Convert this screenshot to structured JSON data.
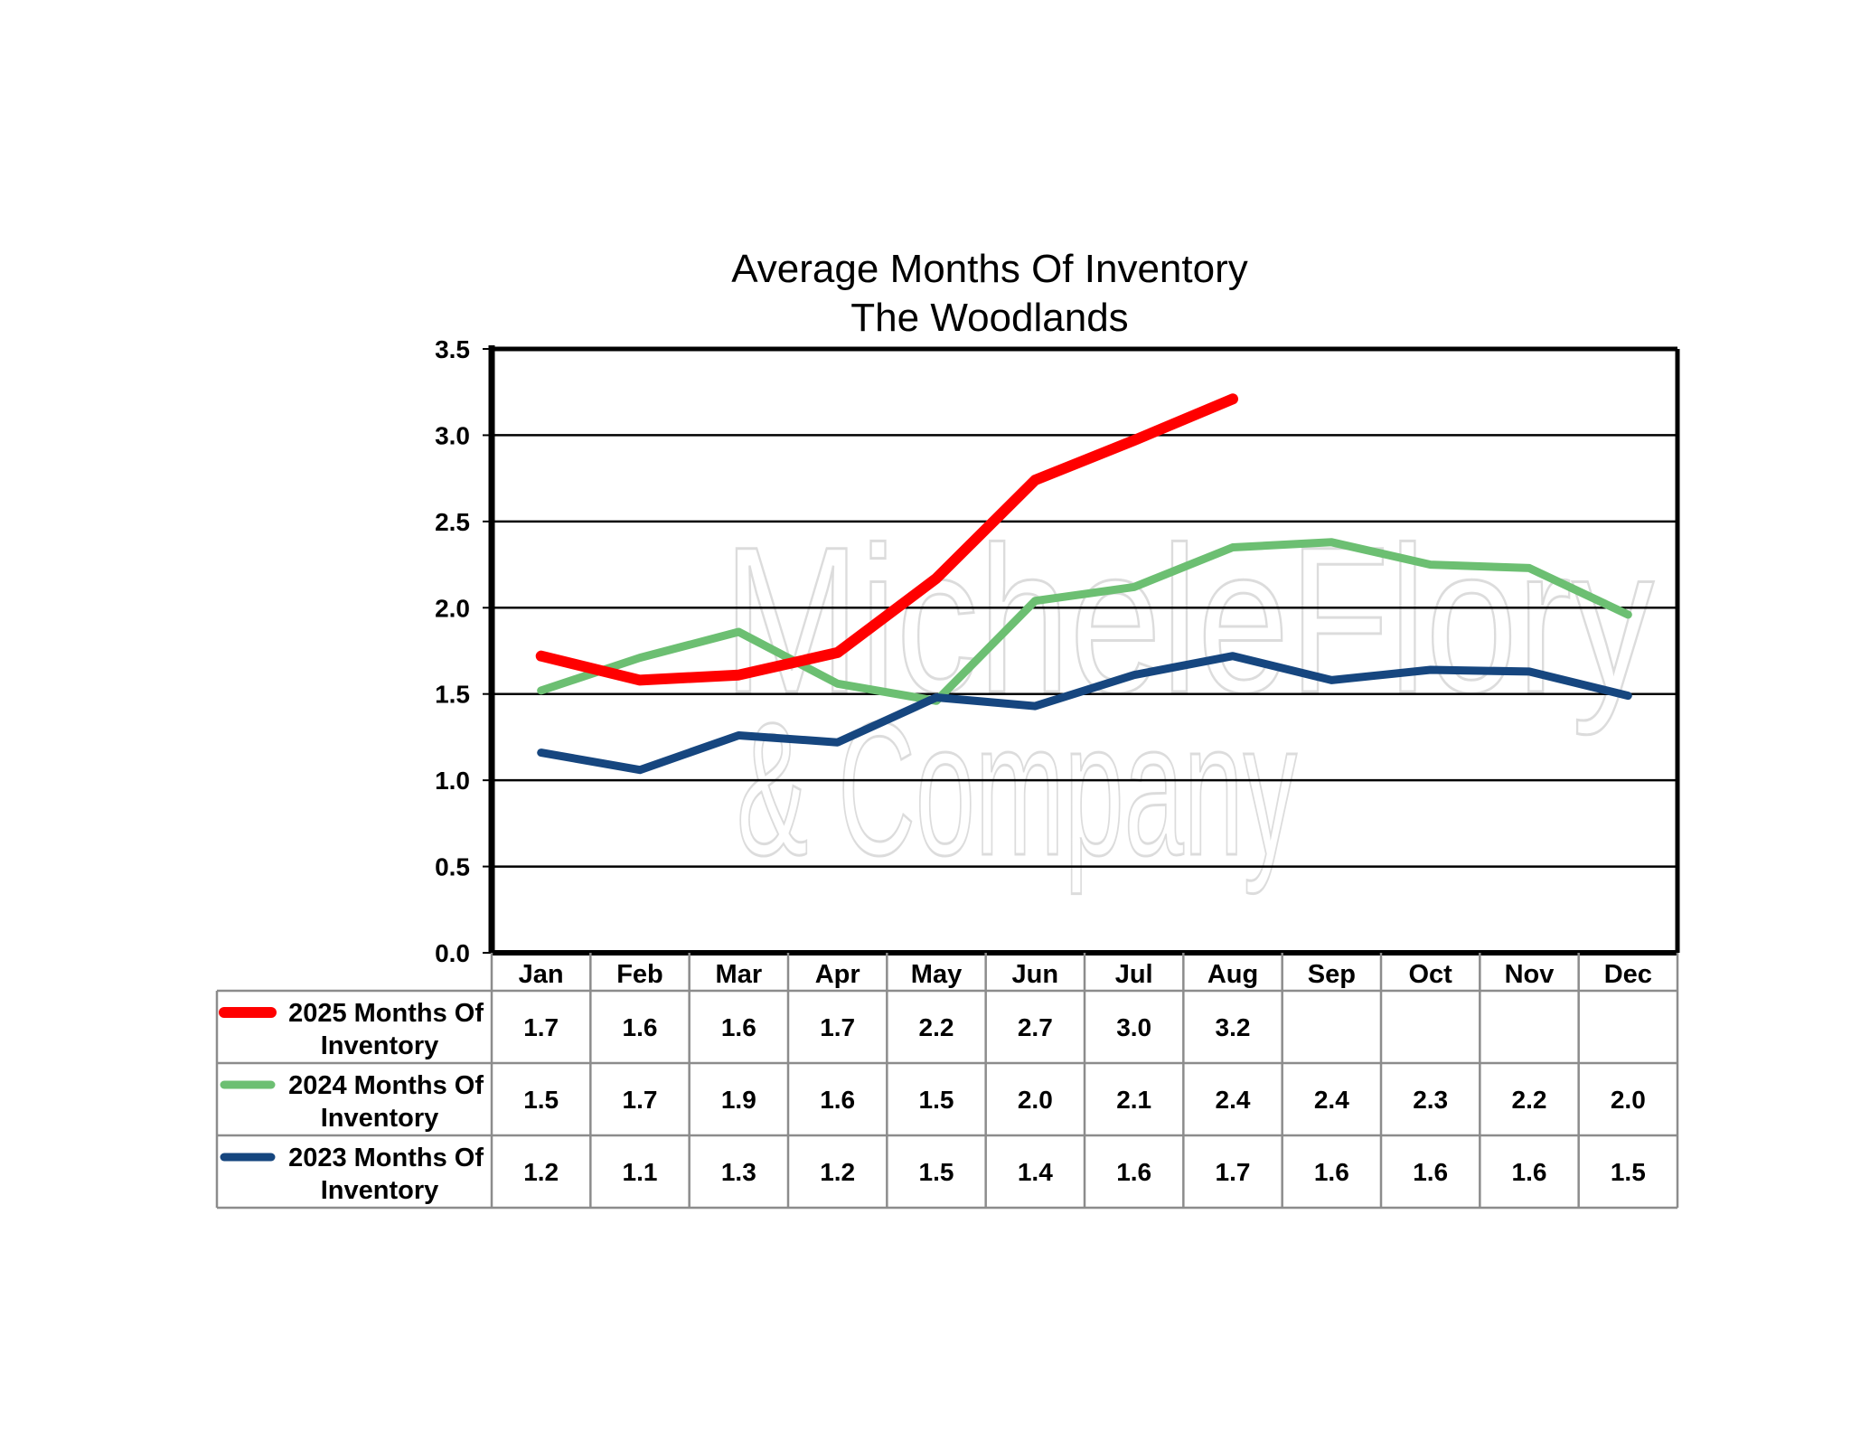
{
  "chart_data": {
    "type": "line",
    "title": "Average Months Of Inventory",
    "subtitle": "The Woodlands",
    "categories": [
      "Jan",
      "Feb",
      "Mar",
      "Apr",
      "May",
      "Jun",
      "Jul",
      "Aug",
      "Sep",
      "Oct",
      "Nov",
      "Dec"
    ],
    "ylim": [
      0,
      3.5
    ],
    "yticks": [
      "0.0",
      "0.5",
      "1.0",
      "1.5",
      "2.0",
      "2.5",
      "3.0",
      "3.5"
    ],
    "grid": true,
    "legend": "data-table-left",
    "series": [
      {
        "name_line1": "2025 Months Of",
        "name_line2": "Inventory",
        "color": "#ff0000",
        "values": [
          1.72,
          1.58,
          1.61,
          1.74,
          2.17,
          2.74,
          2.97,
          3.21,
          null,
          null,
          null,
          null
        ],
        "labels": [
          "1.7",
          "1.6",
          "1.6",
          "1.7",
          "2.2",
          "2.7",
          "3.0",
          "3.2",
          "",
          "",
          "",
          ""
        ]
      },
      {
        "name_line1": "2024 Months Of",
        "name_line2": "Inventory",
        "color": "#6cbf72",
        "values": [
          1.52,
          1.71,
          1.86,
          1.56,
          1.46,
          2.04,
          2.12,
          2.35,
          2.38,
          2.25,
          2.23,
          1.96
        ],
        "labels": [
          "1.5",
          "1.7",
          "1.9",
          "1.6",
          "1.5",
          "2.0",
          "2.1",
          "2.4",
          "2.4",
          "2.3",
          "2.2",
          "2.0"
        ]
      },
      {
        "name_line1": "2023 Months Of",
        "name_line2": "Inventory",
        "color": "#16467f",
        "values": [
          1.16,
          1.06,
          1.26,
          1.22,
          1.48,
          1.43,
          1.61,
          1.72,
          1.58,
          1.64,
          1.63,
          1.49
        ],
        "labels": [
          "1.2",
          "1.1",
          "1.3",
          "1.2",
          "1.5",
          "1.4",
          "1.6",
          "1.7",
          "1.6",
          "1.6",
          "1.6",
          "1.5"
        ]
      }
    ],
    "watermark": {
      "line1": "MicheleFlory",
      "line2": "& Company"
    }
  }
}
